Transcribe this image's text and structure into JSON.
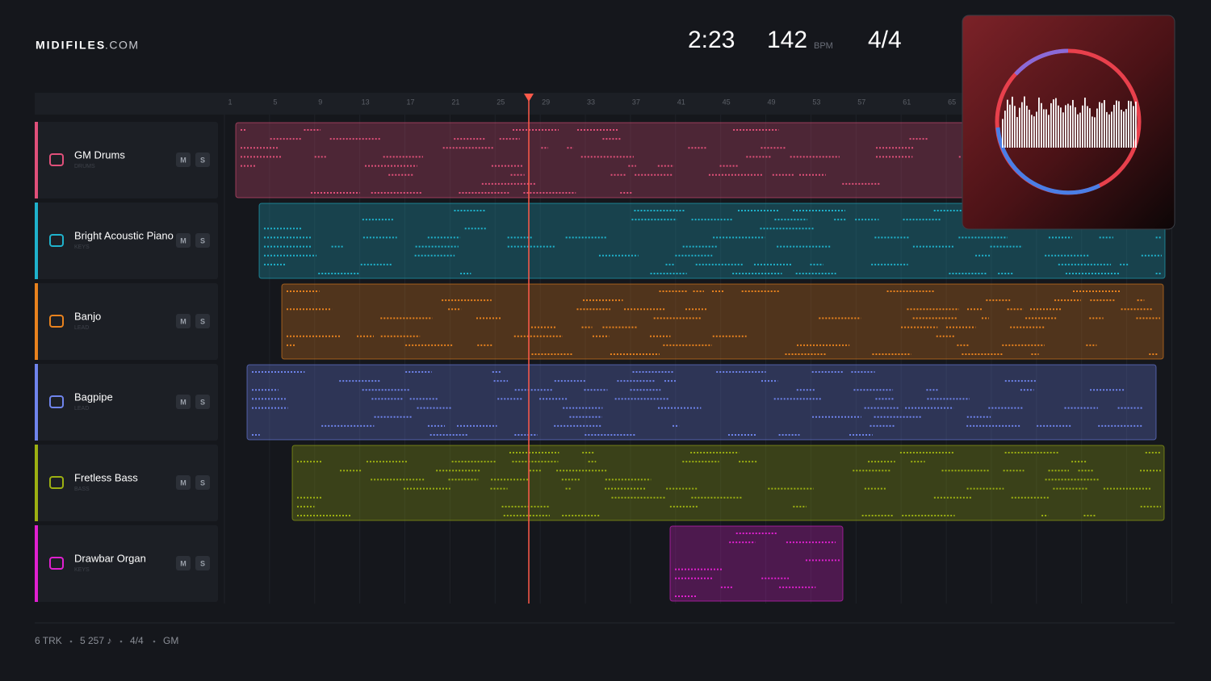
{
  "header": {
    "brand": "MIDIFILES",
    "brand_suffix": ".COM",
    "time": "2:23",
    "tempo": "142",
    "tempo_unit": "BPM",
    "meter": "4/4"
  },
  "ruler": {
    "bars": [
      "1",
      "5",
      "9",
      "13",
      "17",
      "21",
      "25",
      "29",
      "33",
      "37",
      "41",
      "45",
      "49",
      "53",
      "57",
      "61",
      "65"
    ]
  },
  "tracks": [
    {
      "name": "GM Drums",
      "category": "DRUMS",
      "mute": "M",
      "solo": "S",
      "color": "#e0507a"
    },
    {
      "name": "Bright Acoustic Piano",
      "category": "KEYS",
      "mute": "M",
      "solo": "S",
      "color": "#1fb2cc"
    },
    {
      "name": "Banjo",
      "category": "LEAD",
      "mute": "M",
      "solo": "S",
      "color": "#e8821e"
    },
    {
      "name": "Bagpipe",
      "category": "LEAD",
      "mute": "M",
      "solo": "S",
      "color": "#6f84ec"
    },
    {
      "name": "Fretless Bass",
      "category": "BASS",
      "mute": "M",
      "solo": "S",
      "color": "#9cb012"
    },
    {
      "name": "Drawbar Organ",
      "category": "KEYS",
      "mute": "M",
      "solo": "S",
      "color": "#e020d0"
    }
  ],
  "footer": {
    "items": [
      "6 TRK",
      "5 257 ♪",
      "4/4",
      "GM"
    ]
  }
}
